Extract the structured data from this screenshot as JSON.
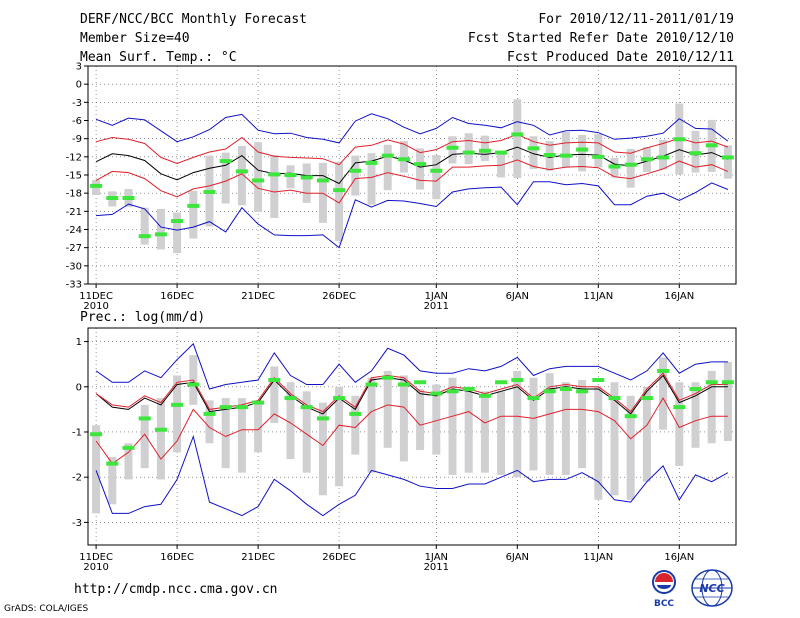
{
  "header": {
    "title": "DERF/NCC/BCC Monthly Forecast",
    "member_size": "Member Size=40",
    "variable": "Mean Surf. Temp.: °C",
    "period": "For 2010/12/11-2011/01/19",
    "fcst_started": "Fcst Started Refer Date 2010/12/10",
    "fcst_produced": "Fcst Produced Date 2010/12/11"
  },
  "footer": {
    "url": "http://cmdp.ncc.cma.gov.cn",
    "credit": "GrADS: COLA/IGES",
    "logo_bcc": "BCC",
    "logo_ncc": "NCC"
  },
  "colors": {
    "ensemble_mean": "#000000",
    "inner_bounds": "#e0202a",
    "outer_bounds": "#1010c8",
    "spread_bars": "#d0d0d2",
    "observed": "#3ce63c",
    "grid": "#555555"
  },
  "chart_data": [
    {
      "type": "line",
      "title": "Mean Surf. Temp.: °C",
      "ylim": [
        -33,
        3
      ],
      "yticks": [
        "3",
        "0",
        "-3",
        "-6",
        "-9",
        "-12",
        "-15",
        "-18",
        "-21",
        "-24",
        "-27",
        "-30",
        "-33"
      ],
      "xlim": [
        0.5,
        40.5
      ],
      "x_ticks": [
        {
          "x": 1,
          "label": "11DEC",
          "sub": "2010"
        },
        {
          "x": 6,
          "label": "16DEC",
          "sub": ""
        },
        {
          "x": 11,
          "label": "21DEC",
          "sub": ""
        },
        {
          "x": 16,
          "label": "26DEC",
          "sub": ""
        },
        {
          "x": 22,
          "label": "1JAN",
          "sub": "2011"
        },
        {
          "x": 27,
          "label": "6JAN",
          "sub": ""
        },
        {
          "x": 32,
          "label": "11JAN",
          "sub": ""
        },
        {
          "x": 37,
          "label": "16JAN",
          "sub": ""
        }
      ],
      "series": [
        {
          "name": "ensemble mean",
          "values": [
            -12.8,
            -11.5,
            -11.8,
            -12.6,
            -14.8,
            -15.8,
            -14.6,
            -13.9,
            -13.4,
            -11.8,
            -14.2,
            -14.8,
            -14.7,
            -15.1,
            -15.1,
            -16.4,
            -13.0,
            -12.7,
            -11.9,
            -12.5,
            -13.7,
            -13.3,
            -11.6,
            -11.4,
            -11.6,
            -11.3,
            -10.4,
            -11.5,
            -12.1,
            -11.7,
            -11.6,
            -11.7,
            -13.2,
            -13.5,
            -12.7,
            -11.9,
            -10.8,
            -11.7,
            -11.3,
            -12.4
          ]
        },
        {
          "name": "upper inner",
          "values": [
            -9.5,
            -8.8,
            -9.1,
            -9.8,
            -12.1,
            -13.1,
            -12.1,
            -11.2,
            -10.7,
            -8.8,
            -11.2,
            -11.9,
            -12.1,
            -12.2,
            -12.3,
            -13.3,
            -10.4,
            -10.1,
            -9.2,
            -9.9,
            -11.3,
            -10.8,
            -9.5,
            -9.3,
            -9.7,
            -9.3,
            -8.3,
            -9.5,
            -10.1,
            -9.7,
            -9.6,
            -9.7,
            -11.2,
            -11.4,
            -10.5,
            -9.8,
            -8.9,
            -9.7,
            -9.4,
            -10.4
          ]
        },
        {
          "name": "lower inner",
          "values": [
            -15.9,
            -14.4,
            -14.6,
            -15.6,
            -17.6,
            -18.6,
            -17.3,
            -16.8,
            -16.0,
            -14.8,
            -17.2,
            -17.8,
            -17.5,
            -18.0,
            -18.0,
            -19.6,
            -15.6,
            -15.4,
            -14.6,
            -15.2,
            -15.9,
            -16.0,
            -13.7,
            -13.7,
            -13.5,
            -13.4,
            -12.5,
            -13.6,
            -14.1,
            -13.7,
            -13.6,
            -13.8,
            -15.3,
            -15.6,
            -14.8,
            -14.0,
            -12.7,
            -13.7,
            -13.3,
            -14.4
          ]
        },
        {
          "name": "upper outer",
          "values": [
            -5.8,
            -6.8,
            -5.6,
            -5.9,
            -7.7,
            -9.5,
            -8.7,
            -7.5,
            -5.5,
            -5.0,
            -7.6,
            -8.2,
            -8.1,
            -8.8,
            -9.1,
            -9.7,
            -6.1,
            -4.9,
            -5.7,
            -7.1,
            -8.2,
            -7.3,
            -5.5,
            -6.5,
            -6.8,
            -7.2,
            -6.2,
            -6.8,
            -8.4,
            -7.7,
            -7.6,
            -8.0,
            -9.1,
            -8.9,
            -8.6,
            -8.1,
            -5.7,
            -7.3,
            -7.4,
            -9.4
          ]
        },
        {
          "name": "lower outer",
          "values": [
            -21.7,
            -21.5,
            -19.8,
            -20.6,
            -23.6,
            -24.1,
            -23.6,
            -22.7,
            -24.4,
            -20.4,
            -23.1,
            -24.9,
            -25.0,
            -25.0,
            -24.9,
            -27.0,
            -19.1,
            -20.3,
            -19.2,
            -19.3,
            -19.7,
            -20.2,
            -17.8,
            -17.3,
            -17.1,
            -17.0,
            -19.9,
            -16.1,
            -16.1,
            -16.6,
            -16.4,
            -16.8,
            -19.9,
            -19.9,
            -18.5,
            -18.0,
            -19.2,
            -17.9,
            -16.3,
            -17.4
          ]
        }
      ],
      "spread": {
        "high": [
          -15.8,
          -17.7,
          -17.3,
          -20.4,
          -20.6,
          -21.2,
          -17.6,
          -11.8,
          -11.3,
          -10.2,
          -9.6,
          -11.7,
          -13.4,
          -13.1,
          -13.0,
          -12.8,
          -11.8,
          -11.4,
          -10.0,
          -9.4,
          -10.6,
          -11.7,
          -8.6,
          -8.1,
          -8.5,
          -11.5,
          -2.5,
          -8.6,
          -9.4,
          -7.9,
          -8.4,
          -8.2,
          -12.2,
          -10.7,
          -10.4,
          -9.2,
          -3.2,
          -7.7,
          -5.9,
          -10.1
        ],
        "low": [
          -18.3,
          -20.2,
          -20.3,
          -26.5,
          -27.3,
          -27.9,
          -25.5,
          -23.5,
          -19.7,
          -20.0,
          -21.1,
          -22.1,
          -17.2,
          -19.6,
          -22.9,
          -25.9,
          -18.4,
          -19.9,
          -17.5,
          -14.6,
          -17.4,
          -19.0,
          -13.1,
          -13.2,
          -12.7,
          -15.4,
          -15.5,
          -14.0,
          -14.3,
          -13.8,
          -14.4,
          -13.7,
          -15.4,
          -17.1,
          -14.5,
          -14.1,
          -14.9,
          -14.6,
          -14.5,
          -15.6
        ]
      },
      "observed": [
        -16.8,
        -18.8,
        -18.8,
        -25.1,
        -24.8,
        -22.6,
        -20.1,
        -17.8,
        -12.7,
        -14.4,
        -15.9,
        -14.9,
        -15.0,
        -15.4,
        -15.9,
        -17.5,
        -14.3,
        -13.0,
        -11.8,
        -12.4,
        -13.2,
        -14.3,
        -10.5,
        -11.3,
        -11.0,
        -11.3,
        -8.3,
        -10.6,
        -11.7,
        -11.8,
        -10.8,
        -12.0,
        -13.6,
        -13.3,
        -12.4,
        -12.1,
        -9.1,
        -11.4,
        -10.1,
        -12.1
      ]
    },
    {
      "type": "line",
      "title": "Prec.: log(mm/d)",
      "ylim": [
        -3.5,
        1.3
      ],
      "yticks": [
        "1",
        "0",
        "-1",
        "-2",
        "-3"
      ],
      "xlim": [
        0.5,
        40.5
      ],
      "x_ticks": [
        {
          "x": 1,
          "label": "11DEC",
          "sub": "2010"
        },
        {
          "x": 6,
          "label": "16DEC",
          "sub": ""
        },
        {
          "x": 11,
          "label": "21DEC",
          "sub": ""
        },
        {
          "x": 16,
          "label": "26DEC",
          "sub": ""
        },
        {
          "x": 22,
          "label": "1JAN",
          "sub": "2011"
        },
        {
          "x": 27,
          "label": "6JAN",
          "sub": ""
        },
        {
          "x": 32,
          "label": "11JAN",
          "sub": ""
        },
        {
          "x": 37,
          "label": "16JAN",
          "sub": ""
        }
      ],
      "series": [
        {
          "name": "ensemble mean",
          "values": [
            -0.15,
            -0.45,
            -0.5,
            -0.25,
            -0.4,
            0.05,
            0.1,
            -0.55,
            -0.5,
            -0.45,
            -0.35,
            0.15,
            -0.2,
            -0.45,
            -0.6,
            -0.25,
            -0.5,
            0.15,
            0.2,
            0.15,
            -0.15,
            -0.2,
            -0.05,
            -0.1,
            -0.2,
            -0.1,
            0.0,
            -0.3,
            -0.05,
            0.0,
            -0.05,
            -0.05,
            -0.3,
            -0.6,
            -0.1,
            0.25,
            -0.35,
            -0.2,
            0.0,
            0.0
          ]
        },
        {
          "name": "upper inner",
          "values": [
            -0.15,
            -0.4,
            -0.45,
            -0.2,
            -0.35,
            0.1,
            0.15,
            -0.5,
            -0.45,
            -0.4,
            -0.3,
            0.2,
            -0.15,
            -0.4,
            -0.55,
            -0.2,
            -0.45,
            0.2,
            0.25,
            0.2,
            -0.1,
            -0.15,
            0.0,
            -0.05,
            -0.15,
            -0.05,
            0.05,
            -0.25,
            0.0,
            0.05,
            0.0,
            0.0,
            -0.25,
            -0.55,
            -0.05,
            0.3,
            -0.3,
            -0.15,
            0.05,
            0.05
          ]
        },
        {
          "name": "lower inner",
          "values": [
            -1.2,
            -1.7,
            -1.45,
            -1.05,
            -1.6,
            -1.2,
            -0.5,
            -0.9,
            -1.1,
            -0.95,
            -0.95,
            -0.6,
            -0.8,
            -1.05,
            -1.3,
            -0.85,
            -0.9,
            -0.55,
            -0.4,
            -0.45,
            -0.85,
            -0.75,
            -0.65,
            -0.55,
            -0.8,
            -0.65,
            -0.65,
            -0.7,
            -0.6,
            -0.5,
            -0.5,
            -0.55,
            -0.75,
            -1.15,
            -0.85,
            -0.25,
            -0.9,
            -0.75,
            -0.65,
            -0.65
          ]
        },
        {
          "name": "upper outer",
          "values": [
            0.35,
            0.1,
            0.1,
            0.35,
            0.2,
            0.6,
            0.95,
            -0.05,
            0.05,
            0.1,
            0.15,
            0.75,
            0.25,
            0.05,
            0.05,
            0.5,
            0.1,
            0.35,
            0.85,
            0.7,
            0.35,
            0.3,
            0.3,
            0.4,
            0.35,
            0.45,
            0.65,
            0.25,
            0.4,
            0.45,
            0.45,
            0.45,
            0.3,
            0.15,
            0.35,
            0.75,
            0.3,
            0.5,
            0.55,
            0.55
          ]
        },
        {
          "name": "lower outer",
          "values": [
            -1.85,
            -2.8,
            -2.8,
            -2.65,
            -2.6,
            -2.05,
            -1.1,
            -2.55,
            -2.7,
            -2.85,
            -2.65,
            -2.05,
            -2.3,
            -2.6,
            -2.85,
            -2.6,
            -2.4,
            -1.85,
            -1.95,
            -2.05,
            -2.2,
            -2.25,
            -2.25,
            -2.15,
            -2.15,
            -2.0,
            -1.85,
            -2.1,
            -2.05,
            -2.05,
            -1.9,
            -2.1,
            -2.5,
            -2.55,
            -2.1,
            -1.75,
            -2.5,
            -1.95,
            -2.1,
            -1.9
          ]
        }
      ],
      "spread": {
        "high": [
          -0.85,
          -1.55,
          -1.25,
          -0.4,
          -0.25,
          0.25,
          0.7,
          -0.3,
          -0.25,
          -0.25,
          -0.3,
          0.45,
          0.1,
          -0.1,
          -0.35,
          0.0,
          -0.2,
          0.2,
          0.35,
          0.25,
          -0.05,
          0.05,
          0.2,
          0.0,
          -0.1,
          -0.1,
          0.35,
          0.2,
          0.3,
          0.1,
          0.15,
          0.0,
          0.1,
          -0.2,
          0.0,
          0.65,
          0.1,
          0.1,
          0.35,
          0.55
        ],
        "low": [
          -2.8,
          -2.6,
          -2.05,
          -1.8,
          -2.05,
          -1.45,
          -0.4,
          -1.25,
          -1.8,
          -1.9,
          -1.45,
          -0.8,
          -1.6,
          -1.9,
          -2.4,
          -2.2,
          -1.5,
          -1.9,
          -1.35,
          -1.65,
          -1.4,
          -1.5,
          -1.95,
          -1.9,
          -1.9,
          -1.95,
          -2.0,
          -1.85,
          -1.95,
          -1.95,
          -1.8,
          -2.5,
          -2.4,
          -2.5,
          -2.1,
          -0.95,
          -1.75,
          -1.35,
          -1.25,
          -1.2
        ]
      },
      "observed": [
        -1.05,
        -1.7,
        -1.35,
        -0.7,
        -0.95,
        -0.4,
        0.05,
        -0.6,
        -0.45,
        -0.45,
        -0.35,
        0.15,
        -0.25,
        -0.45,
        -0.7,
        -0.25,
        -0.6,
        0.05,
        0.2,
        0.05,
        0.1,
        -0.15,
        -0.1,
        -0.05,
        -0.2,
        0.1,
        0.15,
        -0.25,
        -0.1,
        -0.05,
        -0.1,
        0.15,
        -0.25,
        -0.65,
        -0.25,
        0.35,
        -0.45,
        -0.05,
        0.1,
        0.1
      ]
    }
  ]
}
